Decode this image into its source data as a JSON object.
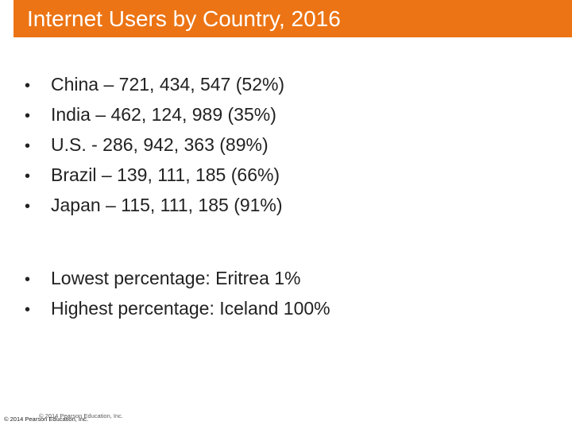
{
  "header": {
    "title": "Internet Users by Country, 2016"
  },
  "countries": [
    {
      "text": "China – 721, 434, 547 (52%)"
    },
    {
      "text": "India – 462, 124, 989 (35%)"
    },
    {
      "text": "U.S. - 286, 942, 363 (89%)"
    },
    {
      "text": "Brazil – 139, 111, 185 (66%)"
    },
    {
      "text": "Japan – 115, 111, 185 (91%)"
    }
  ],
  "extremes": [
    {
      "text": "Lowest percentage: Eritrea 1%"
    },
    {
      "text": "Highest percentage: Iceland 100%"
    }
  ],
  "bullet_glyph": "•",
  "footer": {
    "copyright_back": "© 2014 Pearson Education, Inc.",
    "copyright_front": "© 2014 Pearson Education, Inc."
  },
  "colors": {
    "title_bar": "#ec7414",
    "title_text": "#ffffff",
    "body_text": "#222222"
  }
}
